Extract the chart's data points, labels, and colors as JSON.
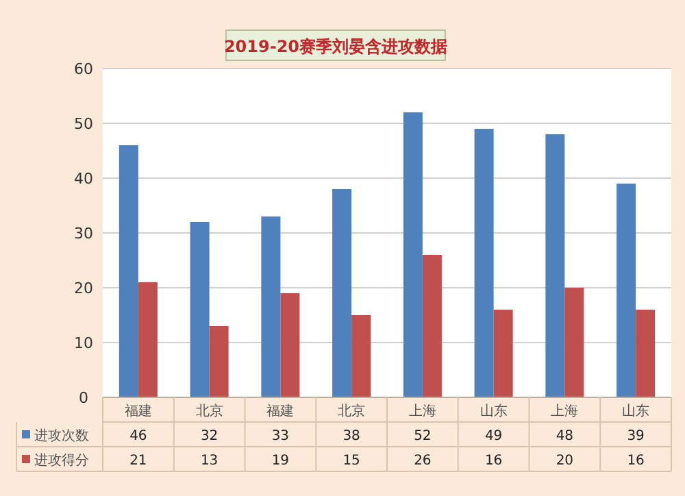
{
  "chart_data": {
    "type": "bar",
    "title": "2019-20赛季刘晏含进攻数据",
    "categories": [
      "福建",
      "北京",
      "福建",
      "北京",
      "上海",
      "山东",
      "上海",
      "山东"
    ],
    "series": [
      {
        "name": "进攻次数",
        "color": "#4f81bd",
        "values": [
          46,
          32,
          33,
          38,
          52,
          49,
          48,
          39
        ]
      },
      {
        "name": "进攻得分",
        "color": "#c0504d",
        "values": [
          21,
          13,
          19,
          15,
          26,
          16,
          20,
          16
        ]
      }
    ],
    "ylim": [
      0,
      60
    ],
    "yticks": [
      0,
      10,
      20,
      30,
      40,
      50,
      60
    ],
    "grid": "y",
    "data_labels": true,
    "legend": "bottom"
  }
}
